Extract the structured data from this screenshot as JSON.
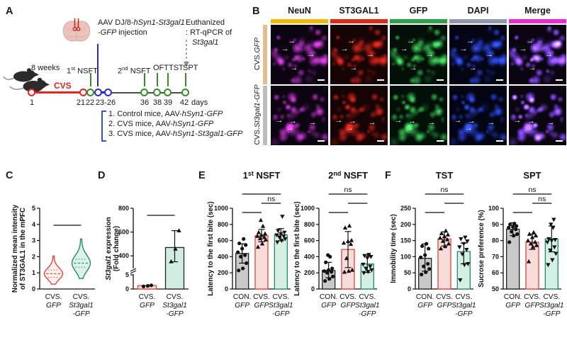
{
  "figure": {
    "panel_labels": {
      "a": "A",
      "b": "B",
      "c": "C",
      "d": "D",
      "e": "E",
      "f": "F"
    },
    "panel_a": {
      "injection_line1": "AAV DJ/8-*hSyn1*-*St3gal1*",
      "injection_line2": "-*GFP* injection",
      "euth_line1": "Euthanized",
      "euth_line2": ": RT-qPCR of",
      "euth_line3": "*St3gal1*",
      "weeks": "8 weeks",
      "nsft1": "1^st^ NSFT",
      "nsft2": "2^nd^ NSFT",
      "oft": "OFT",
      "tst": "TST",
      "spt": "SPT",
      "cvs": "CVS",
      "days": [
        "1",
        "21",
        "22",
        "23-26",
        "36",
        "38",
        "39",
        "42"
      ],
      "days_word": "days",
      "legend": [
        "1. Control mice, AAV-*hSyn1*-*GFP*",
        "2. CVS mice, AAV-*hSyn1*-*GFP*",
        "3. CVS mice, AAV-*hSyn1*-*St3gal1*-*GFP*"
      ]
    },
    "panel_b": {
      "columns": [
        {
          "label": "NeuN",
          "color": "#F2B90D",
          "tint": "190,55,200",
          "bg": "#0d0412"
        },
        {
          "label": "ST3GAL1",
          "color": "#DD2A1B",
          "tint": "195,32,26",
          "bg": "#160404"
        },
        {
          "label": "GFP",
          "color": "#2FA14B",
          "tint": "62,195,88",
          "bg": "#031007"
        },
        {
          "label": "DAPI",
          "color": "#8E99AB",
          "tint": "48,72,225",
          "bg": "#030515"
        },
        {
          "label": "Merge",
          "color": "#E92BD3",
          "tint": "merge",
          "bg": "#0b0511"
        }
      ],
      "rows": [
        {
          "label": "CVS.*GFP*",
          "bar_color": "#E3BE93",
          "arrows": [
            [
              0.3,
              0.22
            ],
            [
              0.18,
              0.35
            ],
            [
              0.63,
              0.44
            ],
            [
              0.34,
              0.67
            ]
          ]
        },
        {
          "label": "CVS.*St3gal1*-*GFP*",
          "bar_color": "#BDBDBD",
          "arrows": [
            [
              0.08,
              0.52
            ],
            [
              0.32,
              0.53
            ],
            [
              0.66,
              0.56
            ],
            [
              0.27,
              0.66
            ]
          ]
        }
      ]
    }
  },
  "chart_data": [
    {
      "id": "C",
      "type": "violin",
      "ylabel_lines": [
        "Normalized mean intensity",
        "of ST3GAL1 in the mPFC"
      ],
      "ylim": [
        0,
        5
      ],
      "yticks": [
        0,
        1,
        2,
        3,
        4,
        5
      ],
      "sig_y0": 82,
      "groups": [
        {
          "label_lines": [
            "CVS.",
            "*GFP*"
          ],
          "color": "#E8423C",
          "fill": "#FDF1F0",
          "min": 0.3,
          "max": 2.05,
          "median": 0.95,
          "q1": 0.72,
          "q3": 1.18
        },
        {
          "label_lines": [
            "CVS.",
            "*St3gal1*",
            "*-GFP*"
          ],
          "color": "#27876B",
          "fill": "#DDF2E8",
          "min": 0.65,
          "max": 3.1,
          "median": 1.6,
          "q1": 1.35,
          "q3": 1.85
        }
      ],
      "sig": [
        {
          "a": 0,
          "b": 1,
          "label": "****",
          "row": 0
        }
      ]
    },
    {
      "id": "D",
      "type": "bar",
      "broken": true,
      "ylabel_lines": [
        "*St3gal1* expression",
        "(Fold change)"
      ],
      "low_max": 5,
      "high_min": 300,
      "high_max": 800,
      "yticks_low": [
        0,
        5
      ],
      "yticks_high": [
        400,
        600,
        800
      ],
      "sig_y0": 68,
      "groups": [
        {
          "label_lines": [
            "CVS.",
            "*GFP*"
          ],
          "stroke": "#E8423C",
          "fill": "#FBE4E2",
          "mean": 1.2,
          "err": null,
          "marker": "circle",
          "points": [
            0.9,
            1.1,
            1.3
          ]
        },
        {
          "label_lines": [
            "CVS.",
            "*St3gal1*",
            "*-GFP*"
          ],
          "stroke": "#222222",
          "fill": "#CFEEDF",
          "mean": 470,
          "err": [
            350,
            612
          ],
          "marker": "tri-up",
          "points": [
            352,
            458,
            612
          ]
        }
      ],
      "sig": [
        {
          "a": 0,
          "b": 1,
          "label": "**",
          "row": 0
        }
      ]
    },
    {
      "id": "E1",
      "type": "bar",
      "title": "1^st^ NSFT",
      "ylabel_lines": [
        "Latency to the first bite (sec)"
      ],
      "ylim": [
        0,
        1000
      ],
      "yticks": [
        0,
        200,
        400,
        600,
        800,
        1000
      ],
      "groups": [
        {
          "label_lines": [
            "CON.",
            "*GFP*"
          ],
          "stroke": "#222222",
          "fill": "#C9C9C9",
          "mean": 440,
          "err": [
            320,
            560
          ],
          "marker": "circle",
          "points": [
            230,
            255,
            320,
            400,
            420,
            455,
            500,
            545,
            565,
            620
          ]
        },
        {
          "label_lines": [
            "CVS.",
            "*GFP*"
          ],
          "stroke": "#E8423C",
          "fill": "#F8DCDA",
          "mean": 660,
          "err": [
            585,
            738
          ],
          "marker": "tri-up",
          "points": [
            520,
            560,
            610,
            625,
            640,
            655,
            668,
            685,
            700,
            778,
            852
          ]
        },
        {
          "label_lines": [
            "CVS.",
            "*St3gal1*",
            "*-GFP*"
          ],
          "stroke": "#27876B",
          "fill": "#D4F0E3",
          "mean": 670,
          "err": [
            598,
            748
          ],
          "marker": "tri-down",
          "points": [
            580,
            600,
            622,
            640,
            655,
            668,
            682,
            700,
            722,
            898
          ]
        }
      ],
      "sig": [
        {
          "a": 0,
          "b": 1,
          "label": "***",
          "row": 0
        },
        {
          "a": 1,
          "b": 2,
          "label": "ns",
          "row": 1
        },
        {
          "a": 0,
          "b": 2,
          "label": "***",
          "row": 2
        }
      ]
    },
    {
      "id": "E2",
      "type": "bar",
      "title": "2^nd^ NSFT",
      "ylabel_lines": [
        "Latency to the first bite (sec)"
      ],
      "ylim": [
        0,
        1000
      ],
      "yticks": [
        0,
        200,
        400,
        600,
        800,
        1000
      ],
      "groups": [
        {
          "label_lines": [
            "CON.",
            "*GFP*"
          ],
          "stroke": "#222222",
          "fill": "#C9C9C9",
          "mean": 230,
          "err": [
            140,
            330
          ],
          "marker": "circle",
          "points": [
            100,
            125,
            155,
            200,
            212,
            222,
            235,
            255,
            330,
            400,
            420
          ]
        },
        {
          "label_lines": [
            "CVS.",
            "*GFP*"
          ],
          "stroke": "#E8423C",
          "fill": "#F8DCDA",
          "mean": 490,
          "err": [
            265,
            712
          ],
          "marker": "tri-up",
          "points": [
            210,
            222,
            235,
            380,
            555,
            570,
            590,
            602,
            758,
            782
          ]
        },
        {
          "label_lines": [
            "CVS.",
            "*St3gal1*",
            "*-GFP*"
          ],
          "stroke": "#27876B",
          "fill": "#D4F0E3",
          "mean": 310,
          "err": [
            205,
            422
          ],
          "marker": "tri-down",
          "points": [
            200,
            215,
            235,
            255,
            280,
            305,
            385,
            400,
            412,
            425
          ]
        }
      ],
      "sig": [
        {
          "a": 0,
          "b": 1,
          "label": "**",
          "row": 0
        },
        {
          "a": 1,
          "b": 2,
          "label": "*",
          "row": 1
        },
        {
          "a": 0,
          "b": 2,
          "label": "ns",
          "row": 2
        }
      ]
    },
    {
      "id": "F1",
      "type": "bar",
      "title": "TST",
      "ylabel_lines": [
        "Immobility time (sec)"
      ],
      "ylim": [
        0,
        250
      ],
      "yticks": [
        0,
        50,
        100,
        150,
        200,
        250
      ],
      "groups": [
        {
          "label_lines": [
            "CON.",
            "*GFP*"
          ],
          "stroke": "#222222",
          "fill": "#C9C9C9",
          "mean": 95,
          "err": [
            55,
            140
          ],
          "marker": "circle",
          "points": [
            45,
            52,
            62,
            70,
            78,
            98,
            105,
            125,
            133,
            140
          ]
        },
        {
          "label_lines": [
            "CVS.",
            "*GFP*"
          ],
          "stroke": "#E8423C",
          "fill": "#F8DCDA",
          "mean": 155,
          "err": [
            133,
            177
          ],
          "marker": "tri-up",
          "points": [
            125,
            132,
            140,
            148,
            153,
            158,
            163,
            168,
            172,
            180
          ]
        },
        {
          "label_lines": [
            "CVS.",
            "*St3gal1*",
            "*-GFP*"
          ],
          "stroke": "#27876B",
          "fill": "#D4F0E3",
          "mean": 116,
          "err": [
            78,
            142
          ],
          "marker": "tri-down",
          "points": [
            28,
            75,
            78,
            108,
            122,
            130,
            140,
            148,
            155,
            160
          ]
        }
      ],
      "sig": [
        {
          "a": 0,
          "b": 1,
          "label": "**",
          "row": 0
        },
        {
          "a": 1,
          "b": 2,
          "label": "*",
          "row": 1
        },
        {
          "a": 0,
          "b": 2,
          "label": "ns",
          "row": 2
        }
      ]
    },
    {
      "id": "F2",
      "type": "bar",
      "title": "SPT",
      "ylabel_lines": [
        "Sucrose preference (%)"
      ],
      "ylim": [
        50,
        100
      ],
      "yticks": [
        50,
        60,
        70,
        80,
        90,
        100
      ],
      "groups": [
        {
          "label_lines": [
            "CON.",
            "*GFP*"
          ],
          "stroke": "#222222",
          "fill": "#C9C9C9",
          "mean": 87,
          "err": [
            83,
            91
          ],
          "marker": "circle",
          "points": [
            79,
            83,
            84,
            85.5,
            87,
            88,
            88.5,
            89,
            90,
            90.5
          ]
        },
        {
          "label_lines": [
            "CVS.",
            "*GFP*"
          ],
          "stroke": "#E8423C",
          "fill": "#F8DCDA",
          "mean": 79,
          "err": [
            74.5,
            84
          ],
          "marker": "tri-up",
          "points": [
            67,
            76,
            77,
            78,
            79,
            80,
            82,
            83,
            84,
            85
          ]
        },
        {
          "label_lines": [
            "CVS.",
            "*St3gal1*",
            "*-GFP*"
          ],
          "stroke": "#27876B",
          "fill": "#D4F0E3",
          "mean": 81,
          "err": [
            73,
            89
          ],
          "marker": "tri-down",
          "points": [
            65,
            68,
            72,
            74,
            76,
            79,
            80,
            80.5,
            81,
            88,
            90,
            93
          ]
        }
      ],
      "sig": [
        {
          "a": 0,
          "b": 1,
          "label": "*",
          "row": 0
        },
        {
          "a": 1,
          "b": 2,
          "label": "ns",
          "row": 1
        },
        {
          "a": 0,
          "b": 2,
          "label": "ns",
          "row": 2
        }
      ]
    }
  ]
}
